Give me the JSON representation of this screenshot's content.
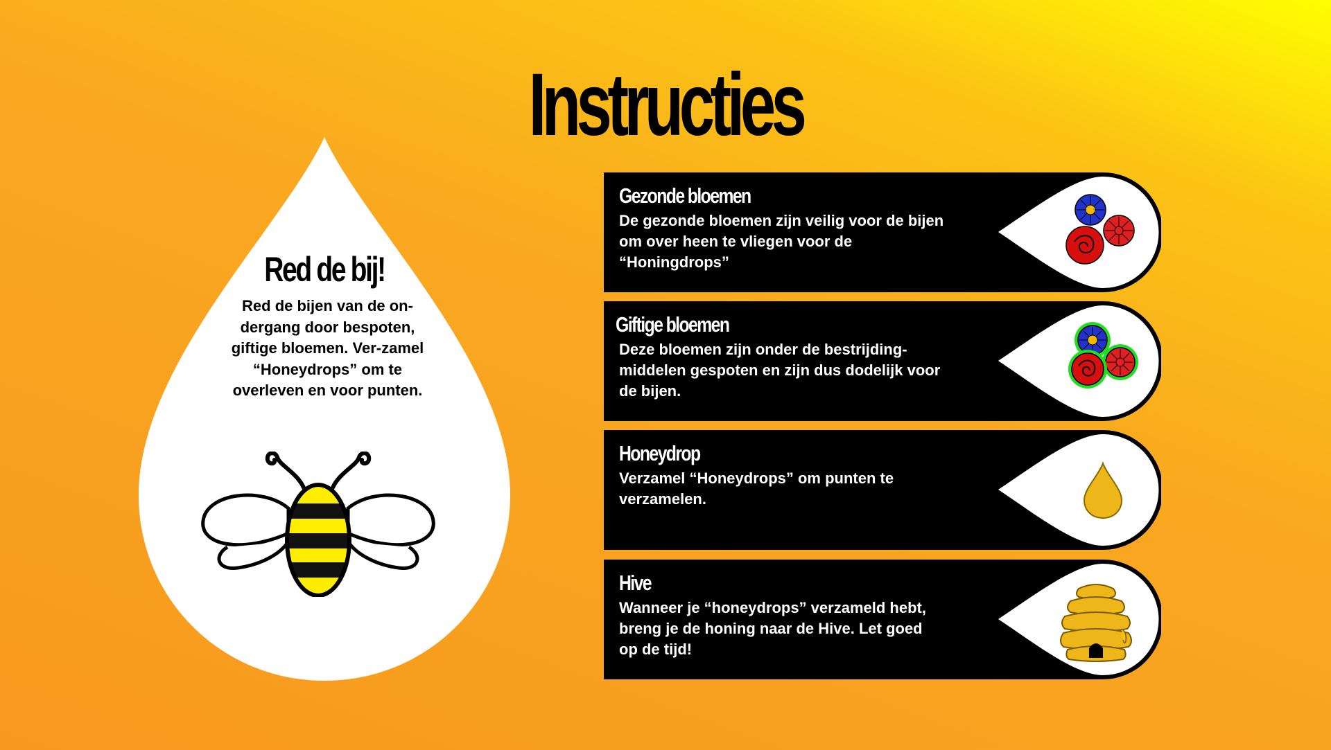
{
  "title": "Instructies",
  "intro": {
    "heading": "Red de bij!",
    "text": "Red de bijen van de on-dergang door bespoten, giftige bloemen.  Ver-zamel  “Honeydrops” om te overleven en voor punten."
  },
  "cards": [
    {
      "title": "Gezonde bloemen",
      "text": "De gezonde bloemen zijn veilig voor de bijen om over heen te vliegen voor de “Honingdrops”",
      "icon": "healthy-flowers-icon"
    },
    {
      "title": "Giftige bloemen",
      "text": "Deze bloemen zijn onder de bestrijding-middelen gespoten en zijn dus dodelijk voor de bijen.",
      "icon": "poisonous-flowers-icon"
    },
    {
      "title": "Honeydrop",
      "text": "Verzamel “Honeydrops”  om punten te verzamelen.",
      "icon": "honeydrop-icon"
    },
    {
      "title": "Hive",
      "text": "Wanneer je “honeydrops” verzameld hebt, breng je de honing naar de Hive. Let goed op de tijd!",
      "icon": "beehive-icon"
    }
  ],
  "colors": {
    "accent": "#f9a820",
    "card": "#000000",
    "honey": "#edb619",
    "poison_glow": "#22dd22"
  }
}
